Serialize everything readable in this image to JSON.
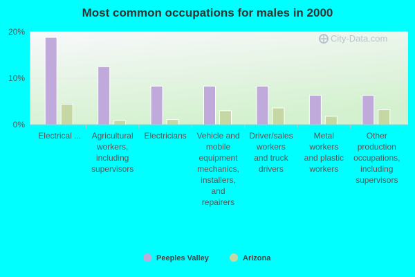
{
  "chart_data": {
    "type": "bar",
    "title": "Most common occupations for males in 2000",
    "xlabel": "",
    "ylabel": "",
    "ylim": [
      0,
      20
    ],
    "y_ticks": [
      "0%",
      "10%",
      "20%"
    ],
    "y_tick_values": [
      0,
      10,
      20
    ],
    "categories": [
      "Electrical ...",
      "Agricultural workers, including supervisors",
      "Electricians",
      "Vehicle and mobile equipment mechanics, installers, and repairers",
      "Driver/sales workers and truck drivers",
      "Metal workers and plastic workers",
      "Other production occupations, including supervisors"
    ],
    "category_lines": [
      [
        "Electrical ..."
      ],
      [
        "Agricultural",
        "workers,",
        "including",
        "supervisors"
      ],
      [
        "Electricians"
      ],
      [
        "Vehicle and",
        "mobile",
        "equipment",
        "mechanics,",
        "installers,",
        "and",
        "repairers"
      ],
      [
        "Driver/sales",
        "workers",
        "and truck",
        "drivers"
      ],
      [
        "Metal",
        "workers",
        "and plastic",
        "workers"
      ],
      [
        "Other",
        "production",
        "occupations,",
        "including",
        "supervisors"
      ]
    ],
    "series": [
      {
        "name": "Peeples Valley",
        "color": "#c0aadb",
        "values": [
          18.8,
          12.5,
          8.3,
          8.3,
          8.3,
          6.3,
          6.3
        ]
      },
      {
        "name": "Arizona",
        "color": "#c5d8a4",
        "values": [
          4.4,
          0.9,
          1.1,
          3.0,
          3.6,
          1.8,
          3.2
        ]
      }
    ],
    "grid": true,
    "legend_position": "bottom-center"
  },
  "watermark": "City-Data.com",
  "colors": {
    "background": "#00ffff",
    "plot_gradient_top": "#f6f8f6",
    "plot_gradient_bottom": "#d6f2d2"
  }
}
